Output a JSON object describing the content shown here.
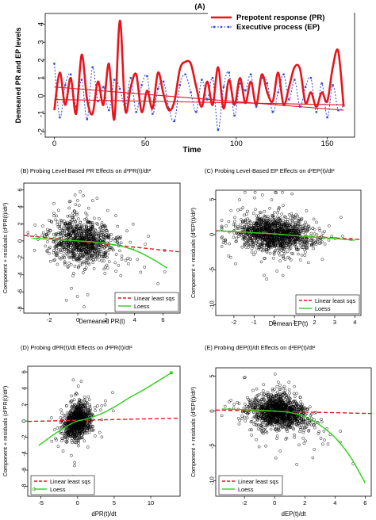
{
  "colors": {
    "red": "#e8141c",
    "blue": "#2e47d8",
    "green": "#2bd01a",
    "black": "#000000",
    "frame": "#000000"
  },
  "chart_data": [
    {
      "id": "A",
      "type": "line",
      "title": "(A)",
      "xlabel": "Time",
      "ylabel": "Demeaned PR and EP levels",
      "xlim": [
        -5,
        165
      ],
      "ylim": [
        -2.3,
        4.6
      ],
      "xticks": [
        0,
        50,
        100,
        150
      ],
      "yticks": [
        -2,
        -1,
        0,
        1,
        2,
        3,
        4
      ],
      "legend_position": "top-right",
      "series": [
        {
          "name": "Prepotent response (PR)",
          "style": "solid",
          "color": "#e8141c",
          "x": [
            0,
            3,
            6,
            9,
            12,
            15,
            18,
            21,
            24,
            27,
            30,
            33,
            36,
            39,
            42,
            45,
            48,
            51,
            54,
            57,
            60,
            63,
            66,
            69,
            72,
            75,
            78,
            81,
            84,
            87,
            90,
            93,
            96,
            99,
            102,
            105,
            108,
            111,
            114,
            117,
            120,
            123,
            126,
            129,
            132,
            135,
            138,
            141,
            144,
            147,
            150,
            153,
            156,
            159
          ],
          "y": [
            -0.8,
            1.3,
            -0.5,
            1.0,
            -1.0,
            2.3,
            -0.2,
            -1.0,
            0.8,
            -0.5,
            1.8,
            -1.3,
            4.2,
            -0.8,
            0.5,
            1.2,
            -0.9,
            0.3,
            -0.7,
            1.3,
            0.1,
            -0.8,
            -0.3,
            1.5,
            1.9,
            1.8,
            0.5,
            -0.6,
            0.8,
            -0.5,
            1.6,
            -0.7,
            0.9,
            -0.5,
            1.0,
            -0.4,
            0.8,
            -0.5,
            1.2,
            0.2,
            -0.3,
            1.3,
            -0.5,
            0.5,
            1.6,
            1.5,
            -0.4,
            0.2,
            -0.6,
            0.2,
            -0.3,
            1.6,
            2.5,
            -0.6
          ]
        },
        {
          "name": "Executive process (EP)",
          "style": "dotted",
          "color": "#2e47d8",
          "x": [
            0,
            3,
            6,
            9,
            12,
            15,
            18,
            21,
            24,
            27,
            30,
            33,
            36,
            39,
            42,
            45,
            48,
            51,
            54,
            57,
            60,
            63,
            66,
            69,
            72,
            75,
            78,
            81,
            84,
            87,
            90,
            93,
            96,
            99,
            102,
            105,
            108,
            111,
            114,
            117,
            120,
            123,
            126,
            129,
            132,
            135,
            138,
            141,
            144,
            147,
            150,
            153,
            156,
            159
          ],
          "y": [
            1.8,
            -1.2,
            0.6,
            1.2,
            -0.6,
            0.9,
            -1.3,
            1.6,
            -0.3,
            0.5,
            -0.8,
            0.9,
            0.4,
            -0.6,
            1.0,
            -0.9,
            0.6,
            1.1,
            -1.0,
            0.4,
            0.8,
            -0.7,
            -1.4,
            0.6,
            1.2,
            0.2,
            -0.9,
            0.9,
            -0.2,
            1.0,
            -1.9,
            0.5,
            1.3,
            -1.1,
            0.7,
            0.3,
            1.2,
            -0.6,
            1.0,
            0.7,
            -0.9,
            0.2,
            1.2,
            -0.2,
            0.9,
            -0.6,
            0.5,
            1.0,
            -0.9,
            0.7,
            -1.2,
            0.6,
            -0.8,
            -0.5
          ]
        },
        {
          "name": "",
          "style": "thin-trend",
          "color": "#e8141c",
          "x": [
            0,
            159
          ],
          "y": [
            -0.2,
            -0.5
          ]
        },
        {
          "name": "",
          "style": "thin-trend",
          "color": "#e8141c",
          "x": [
            0,
            159
          ],
          "y": [
            0.5,
            -0.8
          ]
        }
      ]
    },
    {
      "id": "B",
      "type": "scatter",
      "title": "(B) Probing Level-Based PR Effects on d²PR(t)/dt²",
      "xlabel": "Demeaned PR(t)",
      "ylabel": "Component + residuals (d²PR(t)/dt²)",
      "xlim": [
        -3.8,
        7.2
      ],
      "ylim": [
        -8.5,
        6.8
      ],
      "xticks": [
        -2,
        0,
        2,
        4,
        6
      ],
      "yticks": [
        -8,
        -6,
        -4,
        -2,
        0,
        2,
        4,
        6
      ],
      "legend_position": "bottom-right",
      "cloud": {
        "x_center": 0.3,
        "x_spread": 1.1,
        "x_min": -3.5,
        "x_max": 6.6,
        "y_spread": 1.3,
        "n": 950,
        "seed": 11
      },
      "series": [
        {
          "name": "Linear least sqs",
          "style": "dashed",
          "color": "#e8141c",
          "x": [
            -3.8,
            7.2
          ],
          "y": [
            0.65,
            -1.3
          ]
        },
        {
          "name": "Loess",
          "style": "solid",
          "color": "#2bd01a",
          "x": [
            -3.2,
            -2,
            -1,
            0,
            1,
            2,
            3,
            4,
            5,
            6.3
          ],
          "y": [
            0.3,
            0.2,
            0.1,
            0.0,
            -0.1,
            -0.3,
            -0.6,
            -1.1,
            -1.9,
            -3.2
          ]
        }
      ]
    },
    {
      "id": "C",
      "type": "scatter",
      "title": "(C) Probing Level-Based EP Effects on d²EP(t)/dt²",
      "xlabel": "Demean EP(t)",
      "ylabel": "Component + residuals (d²EP(t)/dt²)",
      "xlim": [
        -2.9,
        4.3
      ],
      "ylim": [
        -11.5,
        6.3
      ],
      "xticks": [
        -2,
        -1,
        0,
        1,
        2,
        3,
        4
      ],
      "yticks": [
        -10,
        -5,
        0,
        5
      ],
      "legend_position": "bottom-right",
      "cloud": {
        "x_center": 0.0,
        "x_spread": 0.9,
        "x_min": -2.6,
        "x_max": 3.8,
        "y_spread": 1.2,
        "n": 1300,
        "seed": 23
      },
      "series": [
        {
          "name": "Linear least sqs",
          "style": "dashed",
          "color": "#e8141c",
          "x": [
            -2.9,
            4.3
          ],
          "y": [
            0.55,
            -0.7
          ]
        },
        {
          "name": "Loess",
          "style": "solid",
          "color": "#2bd01a",
          "x": [
            -2.8,
            -1.5,
            0,
            1.5,
            2.5,
            3.5,
            4.0
          ],
          "y": [
            0.55,
            0.35,
            0.1,
            -0.25,
            -0.45,
            -0.7,
            -0.8
          ]
        }
      ]
    },
    {
      "id": "D",
      "type": "scatter",
      "title": "(D) Probing dPR(t)/dt Effects on d²PR(t)/dt²",
      "xlabel": "dPR(t)/dt",
      "ylabel": "Component + residuals (d²PR(t)/dt²)",
      "xlim": [
        -6.8,
        14.0
      ],
      "ylim": [
        -9.2,
        6.7
      ],
      "xticks": [
        -5,
        0,
        5,
        10
      ],
      "yticks": [
        -8,
        -6,
        -4,
        -2,
        0,
        2,
        4,
        6
      ],
      "legend_position": "bottom-left",
      "cloud": {
        "x_center": 0.0,
        "x_spread": 0.9,
        "x_min": -5.5,
        "x_max": 8,
        "y_spread": 1.1,
        "n": 900,
        "seed": 37
      },
      "series": [
        {
          "name": "Linear least sqs",
          "style": "dashed",
          "color": "#e8141c",
          "x": [
            -6.8,
            14.0
          ],
          "y": [
            -0.05,
            0.35
          ]
        },
        {
          "name": "Loess",
          "style": "solid-marked",
          "color": "#2bd01a",
          "x": [
            -5.3,
            -3,
            -1,
            0,
            1,
            3,
            5,
            7,
            9,
            11,
            12.8
          ],
          "y": [
            -3.0,
            -1.5,
            -0.4,
            0.0,
            0.2,
            0.8,
            1.7,
            2.8,
            3.8,
            4.9,
            5.9
          ]
        }
      ]
    },
    {
      "id": "E",
      "type": "scatter",
      "title": "(E) Probing dEP(t)/dt Effects on d²EP(t)/dt²",
      "xlabel": "dEP(t)/dt",
      "ylabel": "Component + residuals (d²EP(t)/dt²)",
      "xlim": [
        -3.9,
        6.4
      ],
      "ylim": [
        -12.2,
        6.2
      ],
      "xticks": [
        -2,
        0,
        2,
        4,
        6
      ],
      "yticks": [
        -10,
        -5,
        0,
        5
      ],
      "legend_position": "bottom-left",
      "cloud": {
        "x_center": 0.3,
        "x_spread": 0.95,
        "x_min": -3.5,
        "x_max": 5.2,
        "y_spread": 1.15,
        "n": 1300,
        "seed": 53
      },
      "series": [
        {
          "name": "Linear least sqs",
          "style": "dashed",
          "color": "#e8141c",
          "x": [
            -3.9,
            6.4
          ],
          "y": [
            0.15,
            -0.35
          ]
        },
        {
          "name": "Loess",
          "style": "solid",
          "color": "#2bd01a",
          "x": [
            -3.5,
            -2,
            -1,
            0,
            1,
            2,
            3,
            4,
            5,
            6.0
          ],
          "y": [
            0.3,
            0.2,
            0.1,
            0.0,
            -0.2,
            -0.8,
            -2.0,
            -3.8,
            -6.5,
            -10.3
          ]
        }
      ]
    }
  ]
}
